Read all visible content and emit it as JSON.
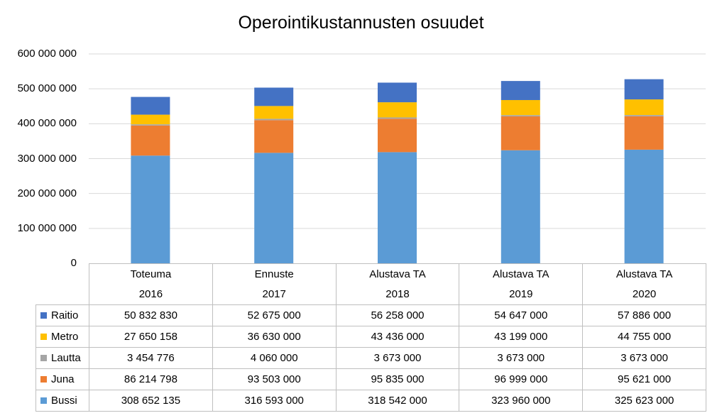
{
  "chart_data": {
    "type": "bar",
    "stacked": true,
    "title": "Operointikustannusten osuudet",
    "xlabel": "",
    "ylabel": "",
    "ylim": [
      0,
      600000000
    ],
    "yticks": [
      "0",
      "100 000 000",
      "200 000 000",
      "300 000 000",
      "400 000 000",
      "500 000 000",
      "600 000 000"
    ],
    "ytick_values": [
      0,
      100000000,
      200000000,
      300000000,
      400000000,
      500000000,
      600000000
    ],
    "grid": true,
    "legend": "data-table",
    "categories": [
      {
        "line1": "Toteuma",
        "line2": "2016"
      },
      {
        "line1": "Ennuste",
        "line2": "2017"
      },
      {
        "line1": "Alustava TA",
        "line2": "2018"
      },
      {
        "line1": "Alustava TA",
        "line2": "2019"
      },
      {
        "line1": "Alustava TA",
        "line2": "2020"
      }
    ],
    "series": [
      {
        "name": "Bussi",
        "color": "#5b9bd5",
        "values": [
          308652135,
          316593000,
          318542000,
          323960000,
          325623000
        ],
        "labels": [
          "308 652 135",
          "316 593 000",
          "318 542 000",
          "323 960 000",
          "325 623 000"
        ]
      },
      {
        "name": "Juna",
        "color": "#ed7d31",
        "values": [
          86214798,
          93503000,
          95835000,
          96999000,
          95621000
        ],
        "labels": [
          "86 214 798",
          "93 503 000",
          "95 835 000",
          "96 999 000",
          "95 621 000"
        ]
      },
      {
        "name": "Lautta",
        "color": "#a5a5a5",
        "values": [
          3454776,
          4060000,
          3673000,
          3673000,
          3673000
        ],
        "labels": [
          "3 454 776",
          "4 060 000",
          "3 673 000",
          "3 673 000",
          "3 673 000"
        ]
      },
      {
        "name": "Metro",
        "color": "#ffc000",
        "values": [
          27650158,
          36630000,
          43436000,
          43199000,
          44755000
        ],
        "labels": [
          "27 650 158",
          "36 630 000",
          "43 436 000",
          "43 199 000",
          "44 755 000"
        ]
      },
      {
        "name": "Raitio",
        "color": "#4472c4",
        "values": [
          50832830,
          52675000,
          56258000,
          54647000,
          57886000
        ],
        "labels": [
          "50 832 830",
          "52 675 000",
          "56 258 000",
          "54 647 000",
          "57 886 000"
        ]
      }
    ]
  }
}
